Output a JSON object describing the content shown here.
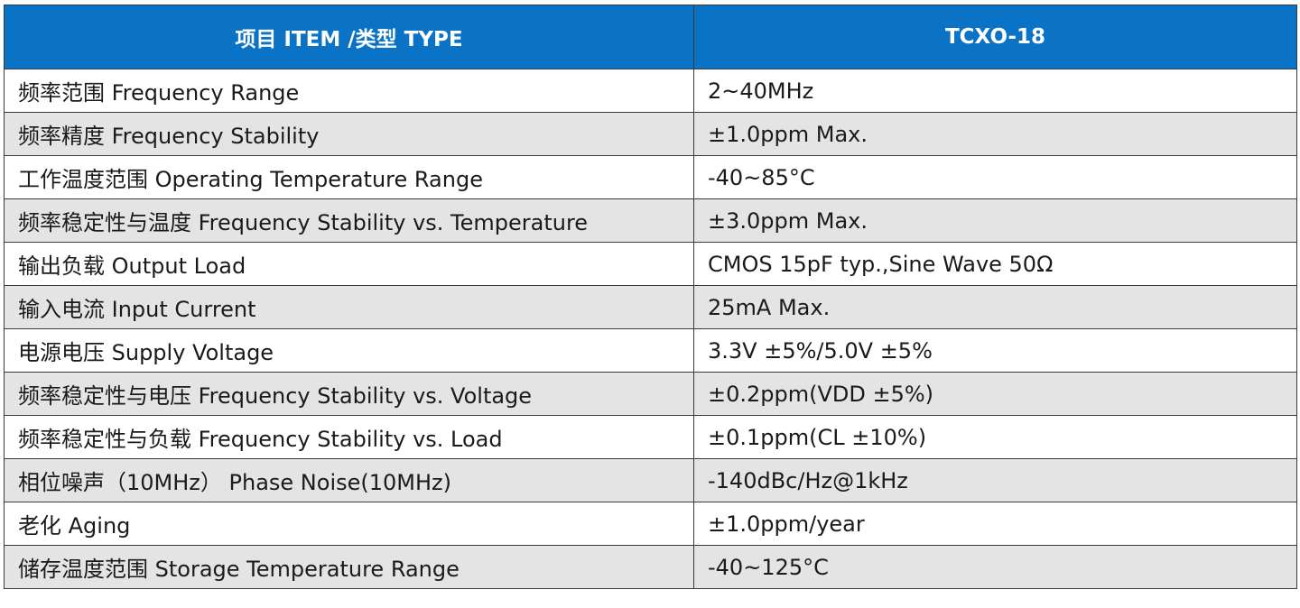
{
  "header": {
    "item_type_label": "项目 ITEM /类型 TYPE",
    "model_label": "TCXO-18"
  },
  "rows": [
    {
      "param": "频率范围  Frequency Range",
      "value": "2~40MHz"
    },
    {
      "param": "频率精度  Frequency Stability",
      "value": "±1.0ppm Max."
    },
    {
      "param": "工作温度范围  Operating Temperature Range",
      "value": "-40~85°C"
    },
    {
      "param": "频率稳定性与温度 Frequency Stability vs. Temperature",
      "value": "±3.0ppm Max."
    },
    {
      "param": "输出负载  Output Load",
      "value": "CMOS 15pF typ.,Sine Wave 50Ω"
    },
    {
      "param": "输入电流  Input Current",
      "value": "25mA Max."
    },
    {
      "param": "电源电压  Supply Voltage",
      "value": "3.3V  ±5%/5.0V  ±5%"
    },
    {
      "param": "频率稳定性与电压  Frequency Stability vs. Voltage",
      "value": "±0.2ppm(VDD  ±5%)"
    },
    {
      "param": "频率稳定性与负载  Frequency Stability vs. Load",
      "value": "±0.1ppm(CL  ±10%)"
    },
    {
      "param": "相位噪声（10MHz）  Phase Noise(10MHz)",
      "value": "-140dBc/Hz@1kHz"
    },
    {
      "param": "老化  Aging",
      "value": "±1.0ppm/year"
    },
    {
      "param": "储存温度范围  Storage Temperature Range",
      "value": "-40~125°C"
    }
  ]
}
